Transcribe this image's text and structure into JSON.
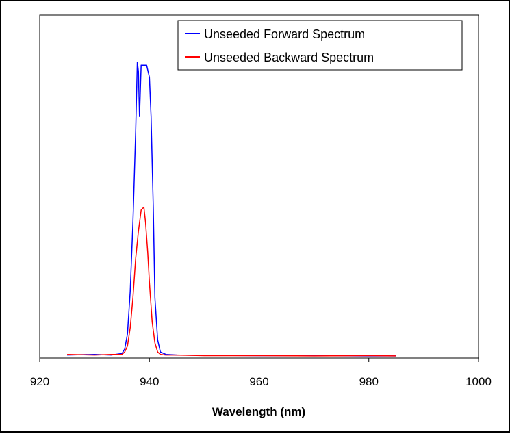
{
  "chart_data": {
    "type": "line",
    "title": "",
    "xlabel": "Wavelength (nm)",
    "ylabel": "",
    "xlim": [
      920,
      1000
    ],
    "ylim": [
      0,
      1
    ],
    "x_ticks": [
      920,
      940,
      960,
      980,
      1000
    ],
    "y_ticks": [],
    "grid": false,
    "legend": "top-right",
    "series": [
      {
        "name": "Unseeded Forward Spectrum",
        "color": "#0000ff",
        "x": [
          925,
          930,
          933,
          935,
          935.5,
          936,
          936.5,
          937,
          937.5,
          937.8,
          938,
          938.2,
          938.5,
          938.8,
          939,
          939.5,
          940,
          940.3,
          940.7,
          941,
          941.5,
          942,
          943,
          945,
          950,
          960,
          970,
          980,
          985
        ],
        "y": [
          0.01,
          0.012,
          0.01,
          0.015,
          0.03,
          0.08,
          0.22,
          0.45,
          0.75,
          0.98,
          0.95,
          0.8,
          0.97,
          0.97,
          0.97,
          0.97,
          0.93,
          0.8,
          0.5,
          0.2,
          0.06,
          0.02,
          0.012,
          0.01,
          0.009,
          0.008,
          0.008,
          0.007,
          0.007
        ]
      },
      {
        "name": "Unseeded Backward Spectrum",
        "color": "#ff0000",
        "x": [
          925,
          930,
          933,
          935,
          935.5,
          936,
          936.5,
          937,
          937.5,
          938,
          938.5,
          939,
          939.3,
          939.7,
          940,
          940.5,
          941,
          941.5,
          942,
          943,
          945,
          950,
          960,
          970,
          980,
          985
        ],
        "y": [
          0.012,
          0.01,
          0.012,
          0.012,
          0.02,
          0.04,
          0.1,
          0.2,
          0.33,
          0.42,
          0.49,
          0.5,
          0.45,
          0.35,
          0.25,
          0.12,
          0.05,
          0.02,
          0.012,
          0.01,
          0.01,
          0.008,
          0.008,
          0.007,
          0.008,
          0.007
        ]
      }
    ]
  }
}
